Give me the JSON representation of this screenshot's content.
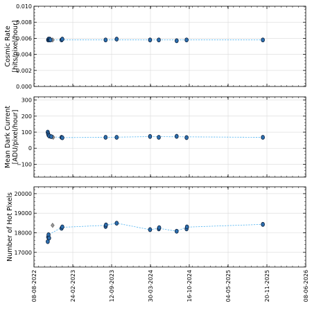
{
  "chart_data": [
    {
      "type": "scatter",
      "ylabel_lines": [
        "Cosmic Rate",
        "[hits/pixel/hour]"
      ],
      "ylim": [
        0,
        0.01
      ],
      "yticks": [
        0,
        0.002,
        0.004,
        0.006,
        0.008,
        0.01
      ],
      "ytick_labels": [
        "0.000",
        "0.002",
        "0.004",
        "0.006",
        "0.008",
        "0.010"
      ],
      "grid": true,
      "points": [
        {
          "x": "2022-10-20",
          "y": 0.0058
        },
        {
          "x": "2022-10-22",
          "y": 0.0059
        },
        {
          "x": "2022-10-25",
          "y": 0.0058
        },
        {
          "x": "2022-10-28",
          "y": 0.0059
        },
        {
          "x": "2022-11-01",
          "y": 0.0058
        },
        {
          "x": "2022-12-28",
          "y": 0.0058
        },
        {
          "x": "2023-01-01",
          "y": 0.0059
        },
        {
          "x": "2023-08-12",
          "y": 0.0058
        },
        {
          "x": "2023-10-08",
          "y": 0.0059
        },
        {
          "x": "2024-03-28",
          "y": 0.0058
        },
        {
          "x": "2024-05-12",
          "y": 0.0058
        },
        {
          "x": "2024-08-12",
          "y": 0.0057
        },
        {
          "x": "2024-10-02",
          "y": 0.0058
        },
        {
          "x": "2025-10-30",
          "y": 0.0058
        }
      ],
      "outliers": [
        {
          "x": "2022-11-12",
          "y": 0.0058
        }
      ],
      "trend": [
        {
          "x": "2022-10-20",
          "y": 0.0058
        },
        {
          "x": "2022-12-30",
          "y": 0.0058
        },
        {
          "x": "2025-10-30",
          "y": 0.0058
        }
      ]
    },
    {
      "type": "scatter",
      "ylabel_lines": [
        "Mean Dark Current",
        "[ADU/pixel/hour]"
      ],
      "ylim": [
        -180,
        320
      ],
      "yticks": [
        -100,
        0,
        100,
        200,
        300
      ],
      "ytick_labels": [
        "−100",
        "0",
        "100",
        "200",
        "300"
      ],
      "grid": true,
      "points": [
        {
          "x": "2022-10-18",
          "y": 100
        },
        {
          "x": "2022-10-20",
          "y": 90
        },
        {
          "x": "2022-10-22",
          "y": 82
        },
        {
          "x": "2022-10-26",
          "y": 76
        },
        {
          "x": "2022-11-05",
          "y": 72
        },
        {
          "x": "2022-12-28",
          "y": 68
        },
        {
          "x": "2023-01-01",
          "y": 65
        },
        {
          "x": "2023-08-12",
          "y": 68
        },
        {
          "x": "2023-10-08",
          "y": 68
        },
        {
          "x": "2024-03-28",
          "y": 73
        },
        {
          "x": "2024-05-12",
          "y": 68
        },
        {
          "x": "2024-08-12",
          "y": 74
        },
        {
          "x": "2024-10-02",
          "y": 66
        },
        {
          "x": "2025-10-30",
          "y": 68
        }
      ],
      "outliers": [
        {
          "x": "2022-11-15",
          "y": 68
        }
      ],
      "trend": [
        {
          "x": "2022-10-18",
          "y": 100
        },
        {
          "x": "2022-10-22",
          "y": 82
        },
        {
          "x": "2022-11-05",
          "y": 72
        },
        {
          "x": "2022-12-30",
          "y": 66
        },
        {
          "x": "2023-08-12",
          "y": 68
        },
        {
          "x": "2024-03-28",
          "y": 72
        },
        {
          "x": "2025-10-30",
          "y": 68
        }
      ]
    },
    {
      "type": "scatter",
      "ylabel_lines": [
        "Number of Hot Pixels"
      ],
      "ylim": [
        16250,
        20350
      ],
      "yticks": [
        17000,
        18000,
        19000,
        20000
      ],
      "ytick_labels": [
        "17000",
        "18000",
        "19000",
        "20000"
      ],
      "grid": true,
      "points": [
        {
          "x": "2022-10-18",
          "y": 17550
        },
        {
          "x": "2022-10-20",
          "y": 17780
        },
        {
          "x": "2022-10-22",
          "y": 17900
        },
        {
          "x": "2022-10-25",
          "y": 17730
        },
        {
          "x": "2022-12-28",
          "y": 18230
        },
        {
          "x": "2023-01-01",
          "y": 18300
        },
        {
          "x": "2023-08-12",
          "y": 18320
        },
        {
          "x": "2023-08-14",
          "y": 18400
        },
        {
          "x": "2023-10-08",
          "y": 18490
        },
        {
          "x": "2024-03-28",
          "y": 18160
        },
        {
          "x": "2024-05-12",
          "y": 18200
        },
        {
          "x": "2024-05-14",
          "y": 18260
        },
        {
          "x": "2024-08-12",
          "y": 18080
        },
        {
          "x": "2024-10-02",
          "y": 18200
        },
        {
          "x": "2024-10-04",
          "y": 18300
        },
        {
          "x": "2025-10-30",
          "y": 18430
        }
      ],
      "outliers": [
        {
          "x": "2022-11-12",
          "y": 18380
        }
      ],
      "trend": [
        {
          "x": "2022-10-18",
          "y": 17550
        },
        {
          "x": "2022-10-22",
          "y": 17900
        },
        {
          "x": "2022-12-30",
          "y": 18280
        },
        {
          "x": "2023-08-12",
          "y": 18380
        },
        {
          "x": "2023-10-08",
          "y": 18490
        },
        {
          "x": "2024-03-28",
          "y": 18160
        },
        {
          "x": "2024-05-12",
          "y": 18230
        },
        {
          "x": "2024-08-12",
          "y": 18080
        },
        {
          "x": "2024-10-02",
          "y": 18290
        },
        {
          "x": "2025-10-30",
          "y": 18430
        }
      ]
    }
  ],
  "x_axis": {
    "range": [
      "2022-08-08",
      "2026-06-08"
    ],
    "ticks": [
      "2022-08-08",
      "2023-02-24",
      "2023-09-12",
      "2024-03-30",
      "2024-10-16",
      "2025-05-04",
      "2025-11-20",
      "2026-06-08"
    ],
    "tick_labels": [
      "08-08-2022",
      "24-02-2023",
      "12-09-2023",
      "30-03-2024",
      "16-10-2024",
      "04-05-2025",
      "20-11-2025",
      "08-06-2026"
    ]
  }
}
